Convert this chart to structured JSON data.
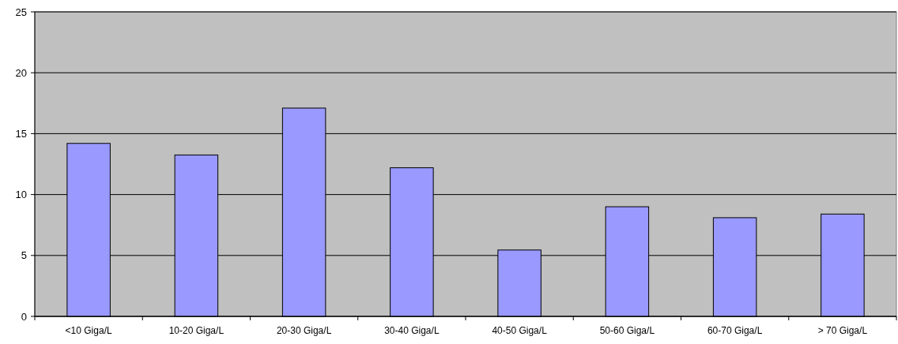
{
  "chart_data": {
    "type": "bar",
    "categories": [
      "<10 Giga/L",
      "10-20 Giga/L",
      "20-30 Giga/L",
      "30-40 Giga/L",
      "40-50 Giga/L",
      "50-60 Giga/L",
      "60-70 Giga/L",
      "> 70 Giga/L"
    ],
    "values": [
      14.2,
      13.25,
      17.1,
      12.2,
      5.45,
      9.0,
      8.1,
      8.4
    ],
    "color": "#9999ff",
    "ylim": [
      0,
      25
    ],
    "yticks": [
      0,
      5,
      10,
      15,
      20,
      25
    ],
    "grid": "y"
  }
}
